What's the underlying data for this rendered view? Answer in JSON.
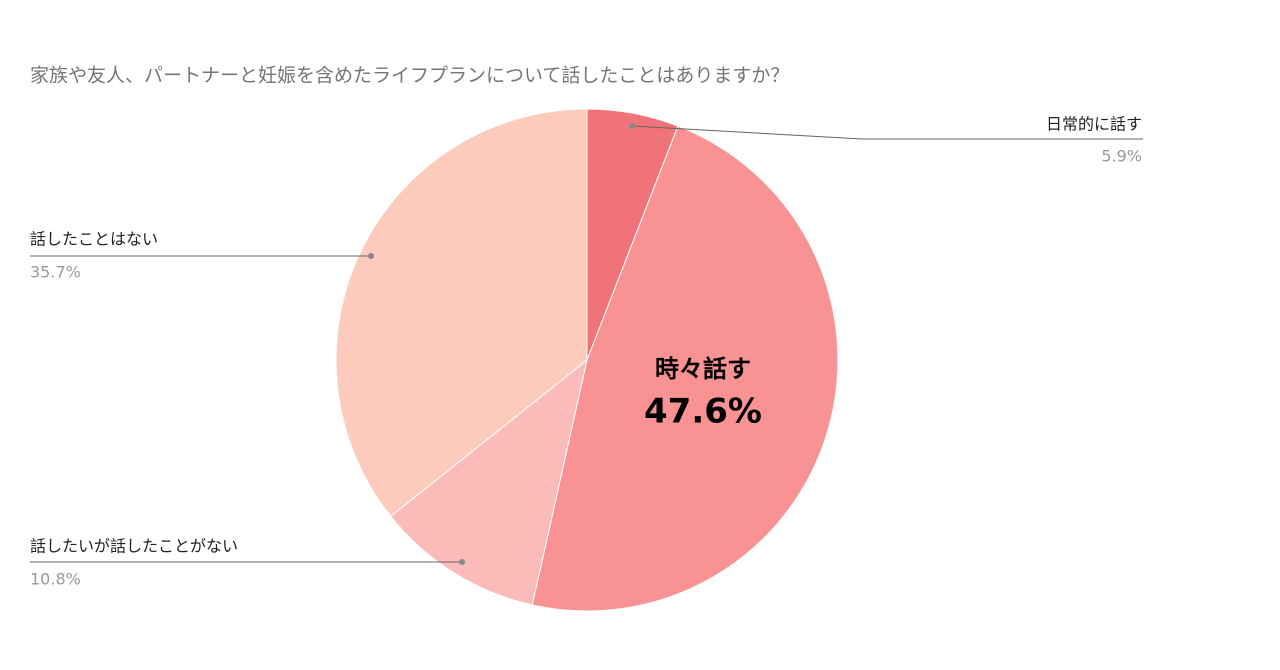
{
  "chart_data": {
    "type": "pie",
    "title": "家族や友人、パートナーと妊娠を含めたライフプランについて話したことはありますか？",
    "categories": [
      "日常的に話す",
      "時々話す",
      "話したいが話したことがない",
      "話したことはない"
    ],
    "values": [
      5.9,
      47.6,
      10.8,
      35.7
    ],
    "value_labels": [
      "5.9%",
      "47.6%",
      "10.8%",
      "35.7%"
    ],
    "colors": [
      "#f0737a",
      "#f99292",
      "#fbbcb9",
      "#fccbbb"
    ]
  }
}
